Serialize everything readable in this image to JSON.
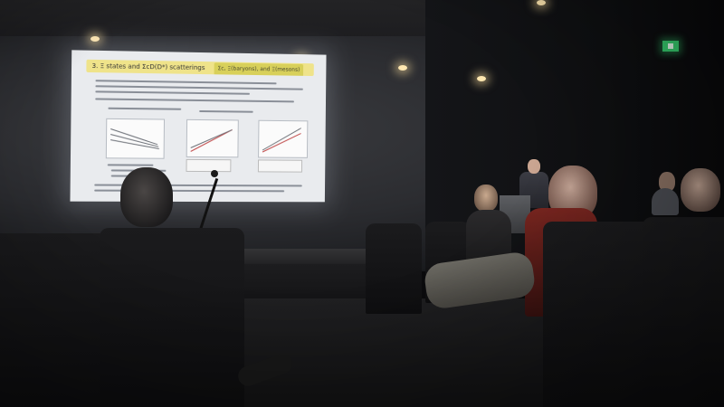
{
  "scene": {
    "description_type": "lecture hall photo",
    "screen_background_color": "#e9ebee",
    "title_bar_color": "#efe38a",
    "exit_sign_color": "#38d070"
  },
  "slide": {
    "title": "3. Ξ states and ΣcD(D*) scatterings",
    "title_highlight": "Σc, Ξ(baryons), and Ξ(mesons)"
  }
}
